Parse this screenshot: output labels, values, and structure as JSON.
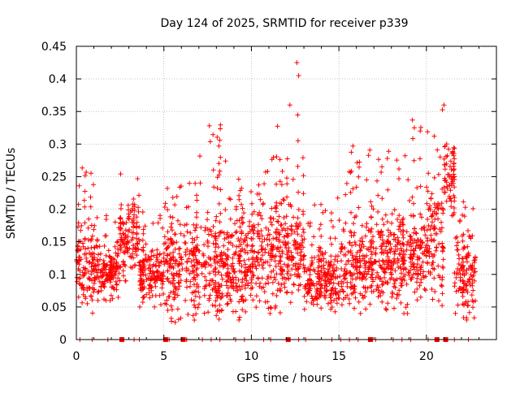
{
  "chart_data": {
    "type": "scatter",
    "title": "Day 124 of 2025, SRMTID for receiver p339",
    "xlabel": "GPS time / hours",
    "ylabel": "SRMTID / TECUs",
    "xlim": [
      0,
      24
    ],
    "ylim": [
      0,
      0.45
    ],
    "xticks": [
      0,
      5,
      10,
      15,
      20
    ],
    "xtick_labels": [
      "0",
      "5",
      "10",
      "15",
      "20"
    ],
    "yticks": [
      0,
      0.05,
      0.1,
      0.15,
      0.2,
      0.25,
      0.3,
      0.35,
      0.4,
      0.45
    ],
    "ytick_labels": [
      "0",
      "0.05",
      "0.1",
      "0.15",
      "0.2",
      "0.25",
      "0.3",
      "0.35",
      "0.4",
      "0.45"
    ],
    "grid": true,
    "marker": "+",
    "color": "#ff0000",
    "series": [
      {
        "name": "SRMTID",
        "density_profile": [
          {
            "x": [
              0.0,
              1.0
            ],
            "y": [
              0.04,
              0.27
            ],
            "center": 0.11
          },
          {
            "x": [
              1.0,
              2.5
            ],
            "y": [
              0.06,
              0.2
            ],
            "center": 0.1
          },
          {
            "x": [
              2.5,
              3.6
            ],
            "y": [
              0.09,
              0.27
            ],
            "center": 0.155
          },
          {
            "x": [
              3.6,
              5.0
            ],
            "y": [
              0.05,
              0.21
            ],
            "center": 0.1
          },
          {
            "x": [
              5.0,
              7.0
            ],
            "y": [
              0.02,
              0.27
            ],
            "center": 0.11
          },
          {
            "x": [
              7.0,
              9.0
            ],
            "y": [
              0.03,
              0.33
            ],
            "center": 0.11
          },
          {
            "x": [
              9.0,
              11.0
            ],
            "y": [
              0.03,
              0.26
            ],
            "center": 0.12
          },
          {
            "x": [
              11.0,
              12.5
            ],
            "y": [
              0.04,
              0.36
            ],
            "center": 0.13
          },
          {
            "x": [
              12.5,
              13.0
            ],
            "y": [
              0.05,
              0.425
            ],
            "center": 0.13
          },
          {
            "x": [
              13.0,
              15.0
            ],
            "y": [
              0.04,
              0.23
            ],
            "center": 0.09
          },
          {
            "x": [
              15.0,
              17.0
            ],
            "y": [
              0.04,
              0.3
            ],
            "center": 0.11
          },
          {
            "x": [
              17.0,
              19.0
            ],
            "y": [
              0.04,
              0.29
            ],
            "center": 0.12
          },
          {
            "x": [
              19.0,
              20.0
            ],
            "y": [
              0.06,
              0.34
            ],
            "center": 0.13
          },
          {
            "x": [
              20.0,
              21.0
            ],
            "y": [
              0.05,
              0.36
            ],
            "center": 0.15
          },
          {
            "x": [
              21.0,
              21.6
            ],
            "y": [
              0.19,
              0.3
            ],
            "center": 0.25
          },
          {
            "x": [
              21.6,
              22.8
            ],
            "y": [
              0.03,
              0.22
            ],
            "center": 0.1
          }
        ],
        "notable_points": [
          {
            "x": 12.6,
            "y": 0.425
          },
          {
            "x": 12.7,
            "y": 0.405
          },
          {
            "x": 7.6,
            "y": 0.328
          },
          {
            "x": 19.2,
            "y": 0.337
          },
          {
            "x": 12.2,
            "y": 0.36
          },
          {
            "x": 21.0,
            "y": 0.36
          },
          {
            "x": 15.8,
            "y": 0.297
          }
        ]
      }
    ],
    "zero_line_markers": {
      "filled_squares_x": [
        2.6,
        5.1,
        6.1,
        12.1,
        16.8,
        20.6,
        21.1
      ],
      "ticks_x": [
        0.2,
        0.9,
        1.8,
        3.3,
        3.6,
        5.3,
        6.3,
        7.2,
        7.7,
        8.2,
        9.1,
        9.6,
        10.7,
        11.1,
        12.7,
        13.1,
        14.6,
        15.1,
        15.6,
        16.1,
        17.1,
        18.1,
        18.6,
        19.1,
        20.1,
        21.6,
        22.4
      ]
    }
  }
}
